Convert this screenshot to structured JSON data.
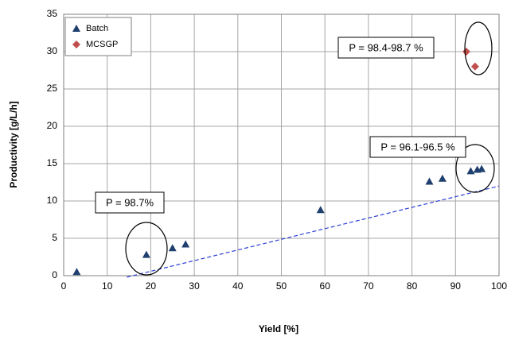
{
  "chart_data": {
    "type": "scatter",
    "xlabel": "Yield [%]",
    "ylabel": "Productivity [g/L/h]",
    "xlim": [
      0,
      100
    ],
    "xticks": [
      0,
      10,
      20,
      30,
      40,
      50,
      60,
      70,
      80,
      90,
      100
    ],
    "ylim": [
      0,
      35
    ],
    "yticks": [
      0,
      5,
      10,
      15,
      20,
      25,
      30,
      35
    ],
    "grid": true,
    "legend": "upper left",
    "series": [
      {
        "name": "Batch",
        "color": "#1f3f6e",
        "marker": "triangle",
        "x": [
          3,
          19,
          25,
          28,
          59,
          84,
          87,
          93.5,
          95,
          96
        ],
        "values": [
          0.5,
          2.8,
          3.7,
          4.2,
          8.8,
          12.6,
          13,
          14,
          14.2,
          14.3
        ]
      },
      {
        "name": "MCSGP",
        "color": "#c0504d",
        "marker": "diamond",
        "x": [
          92.5,
          94.5
        ],
        "values": [
          30,
          28
        ]
      }
    ],
    "trendline": {
      "color": "#2b3fd6",
      "x": [
        14.5,
        100
      ],
      "values": [
        -0.2,
        12
      ]
    },
    "annotations": [
      "P = 98.4-98.7 %",
      "P = 96.1-96.5 %",
      "P = 98.7%"
    ]
  }
}
